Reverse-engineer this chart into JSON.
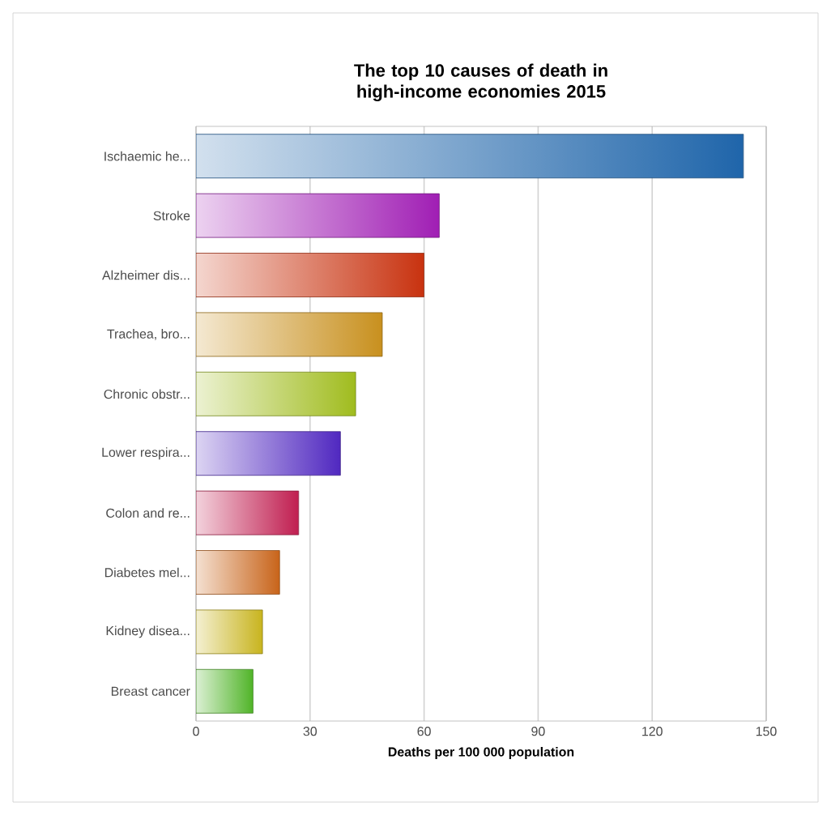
{
  "chart_data": {
    "type": "bar",
    "orientation": "horizontal",
    "title": "The top 10 causes of death in high-income economies 2015",
    "xlabel": "Deaths per 100 000 population",
    "categories": [
      "Ischaemic he...",
      "Stroke",
      "Alzheimer dis...",
      "Trachea, bro...",
      "Chronic obstr...",
      "Lower respira...",
      "Colon and re...",
      "Diabetes mel...",
      "Kidney disea...",
      "Breast cancer"
    ],
    "values": [
      144,
      64,
      60,
      49,
      42,
      38,
      27,
      22,
      17.5,
      15
    ],
    "colors": [
      "#1f65aa",
      "#a01eb4",
      "#c8320f",
      "#c8901e",
      "#a0bc1e",
      "#5028c0",
      "#c01e50",
      "#c8641a",
      "#c8b41e",
      "#50b428"
    ],
    "xlim": [
      0,
      150
    ],
    "xticks": [
      0,
      30,
      60,
      90,
      120,
      150
    ],
    "grid": "x"
  }
}
